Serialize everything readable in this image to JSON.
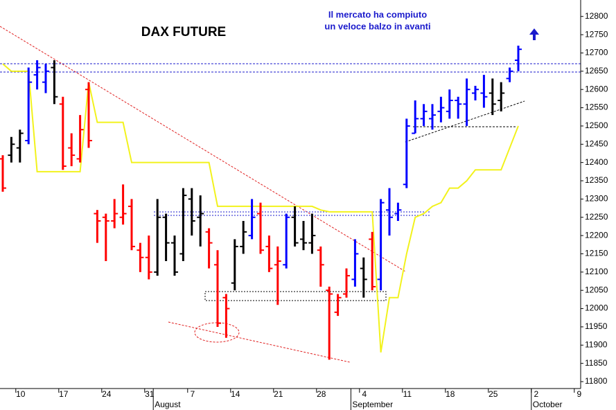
{
  "chart_data": {
    "type": "ohlc",
    "title": "DAX FUTURE",
    "annotation": [
      "Il mercato ha compiuto",
      "un veloce balzo in avanti"
    ],
    "categories": [
      null,
      null,
      "10",
      null,
      null,
      null,
      null,
      "17",
      null,
      null,
      null,
      null,
      "24",
      null,
      null,
      null,
      null,
      "31",
      null,
      null,
      null,
      null,
      "7",
      null,
      null,
      null,
      null,
      "14",
      null,
      null,
      null,
      null,
      "21",
      null,
      null,
      null,
      null,
      "28",
      null,
      null,
      null,
      null,
      "4",
      null,
      null,
      null,
      null,
      "11",
      null,
      null,
      null,
      null,
      "18",
      null,
      null,
      null,
      null,
      "25",
      null,
      null,
      null,
      null,
      "2",
      null,
      null,
      null,
      null,
      "9"
    ],
    "month_labels": [
      null,
      null,
      null,
      null,
      null,
      null,
      null,
      null,
      null,
      null,
      null,
      null,
      null,
      null,
      null,
      null,
      null,
      null,
      "August",
      null,
      null,
      null,
      null,
      null,
      null,
      null,
      null,
      null,
      null,
      null,
      null,
      null,
      null,
      null,
      null,
      null,
      null,
      null,
      null,
      null,
      null,
      "September",
      null,
      null,
      null,
      null,
      null,
      null,
      null,
      null,
      null,
      null,
      null,
      null,
      null,
      null,
      null,
      null,
      null,
      null,
      null,
      null,
      "October",
      null,
      null,
      null,
      null,
      null
    ],
    "open": [
      12410,
      12420,
      12440,
      12460,
      12640,
      12620,
      12660,
      12560,
      12440,
      12410,
      12600,
      12260,
      12250,
      12240,
      12250,
      12280,
      12160,
      12140,
      12100,
      12250,
      12180,
      12150,
      12300,
      12250,
      12210,
      12120,
      12030,
      12070,
      12170,
      12200,
      12260,
      12170,
      12120,
      12120,
      12250,
      12190,
      12180,
      12160,
      12050,
      11990,
      12040,
      12080,
      12110,
      12190,
      12080,
      12270,
      12260,
      12340,
      12480,
      12520,
      12520,
      12540,
      12540,
      12570,
      12560,
      12590,
      12590,
      12590,
      12570,
      12630,
      12680,
      null,
      null,
      null,
      null,
      null,
      null,
      null
    ],
    "high": [
      12420,
      12470,
      12490,
      12660,
      12680,
      12670,
      12680,
      12580,
      12480,
      12530,
      12620,
      12270,
      12260,
      12300,
      12340,
      12300,
      12180,
      12200,
      12300,
      12260,
      12200,
      12330,
      12330,
      12310,
      12220,
      12160,
      12040,
      12190,
      12240,
      12300,
      12290,
      12200,
      12170,
      12260,
      12280,
      12240,
      12260,
      12170,
      12060,
      12040,
      12110,
      12190,
      12140,
      12210,
      12300,
      12330,
      12290,
      12520,
      12570,
      12560,
      12560,
      12580,
      12600,
      12580,
      12630,
      12610,
      12640,
      12630,
      12620,
      12660,
      12720,
      null,
      null,
      null,
      null,
      null,
      null,
      null
    ],
    "low": [
      12320,
      12400,
      12400,
      12450,
      12600,
      12590,
      12560,
      12380,
      12390,
      12400,
      12440,
      12180,
      12130,
      12220,
      12230,
      12160,
      12100,
      12080,
      12090,
      12130,
      12090,
      12130,
      12200,
      12170,
      12110,
      11950,
      11920,
      12050,
      12150,
      12190,
      12150,
      12100,
      12010,
      12110,
      12170,
      12160,
      12150,
      12060,
      11860,
      11980,
      12030,
      12060,
      12030,
      12050,
      12050,
      12200,
      12240,
      12330,
      12480,
      12500,
      12490,
      12510,
      12520,
      12520,
      12500,
      12570,
      12550,
      12530,
      12540,
      12620,
      12650,
      null,
      null,
      null,
      null,
      null,
      null,
      null
    ],
    "close": [
      12330,
      12450,
      12480,
      12620,
      12660,
      12650,
      12580,
      12390,
      12420,
      12490,
      12460,
      12240,
      12240,
      12260,
      12260,
      12170,
      12140,
      12100,
      12250,
      12180,
      12100,
      12310,
      12240,
      12260,
      12180,
      11960,
      12000,
      12170,
      12210,
      12250,
      12160,
      12110,
      12130,
      12250,
      12180,
      12180,
      12200,
      12120,
      12040,
      12030,
      12090,
      12150,
      12080,
      12060,
      12290,
      12250,
      12270,
      12500,
      12520,
      12540,
      12530,
      12550,
      12570,
      12560,
      12600,
      12600,
      12580,
      12560,
      12590,
      12650,
      12710,
      null,
      null,
      null,
      null,
      null,
      null,
      null
    ],
    "bar_colors": [
      "red",
      "black",
      "black",
      "blue",
      "blue",
      "blue",
      "black",
      "red",
      "red",
      "red",
      "red",
      "red",
      "red",
      "red",
      "red",
      "red",
      "red",
      "red",
      "black",
      "black",
      "black",
      "black",
      "black",
      "black",
      "red",
      "red",
      "red",
      "black",
      "black",
      "blue",
      "red",
      "red",
      "red",
      "blue",
      "black",
      "black",
      "black",
      "red",
      "red",
      "red",
      "red",
      "blue",
      "black",
      "red",
      "blue",
      "blue",
      "blue",
      "blue",
      "blue",
      "blue",
      "blue",
      "blue",
      "blue",
      "blue",
      "blue",
      "blue",
      "blue",
      "black",
      "black",
      "blue",
      "blue",
      null,
      null,
      null,
      null,
      null,
      null,
      null
    ],
    "overlay": {
      "color": "#f2f21c",
      "values": [
        12670,
        12650,
        12650,
        12650,
        12375,
        12375,
        12375,
        12375,
        12375,
        12375,
        12620,
        12510,
        12510,
        12510,
        12510,
        12400,
        12400,
        12400,
        12400,
        12400,
        12400,
        12400,
        12400,
        12400,
        12400,
        12280,
        12280,
        12280,
        12280,
        12280,
        12280,
        12280,
        12280,
        12280,
        12280,
        12280,
        12280,
        12270,
        12265,
        12265,
        12265,
        12265,
        12265,
        12265,
        11880,
        12030,
        12030,
        12150,
        12250,
        12260,
        12280,
        12290,
        12330,
        12330,
        12350,
        12380,
        12380,
        12380,
        12380,
        12440,
        12500,
        null,
        null,
        null,
        null,
        null,
        null,
        null
      ]
    },
    "ylim": [
      11783,
      12845
    ],
    "yticks": [
      11800,
      11850,
      11900,
      11950,
      12000,
      12050,
      12100,
      12150,
      12200,
      12250,
      12300,
      12350,
      12400,
      12450,
      12500,
      12550,
      12600,
      12650,
      12700,
      12750,
      12800
    ]
  }
}
